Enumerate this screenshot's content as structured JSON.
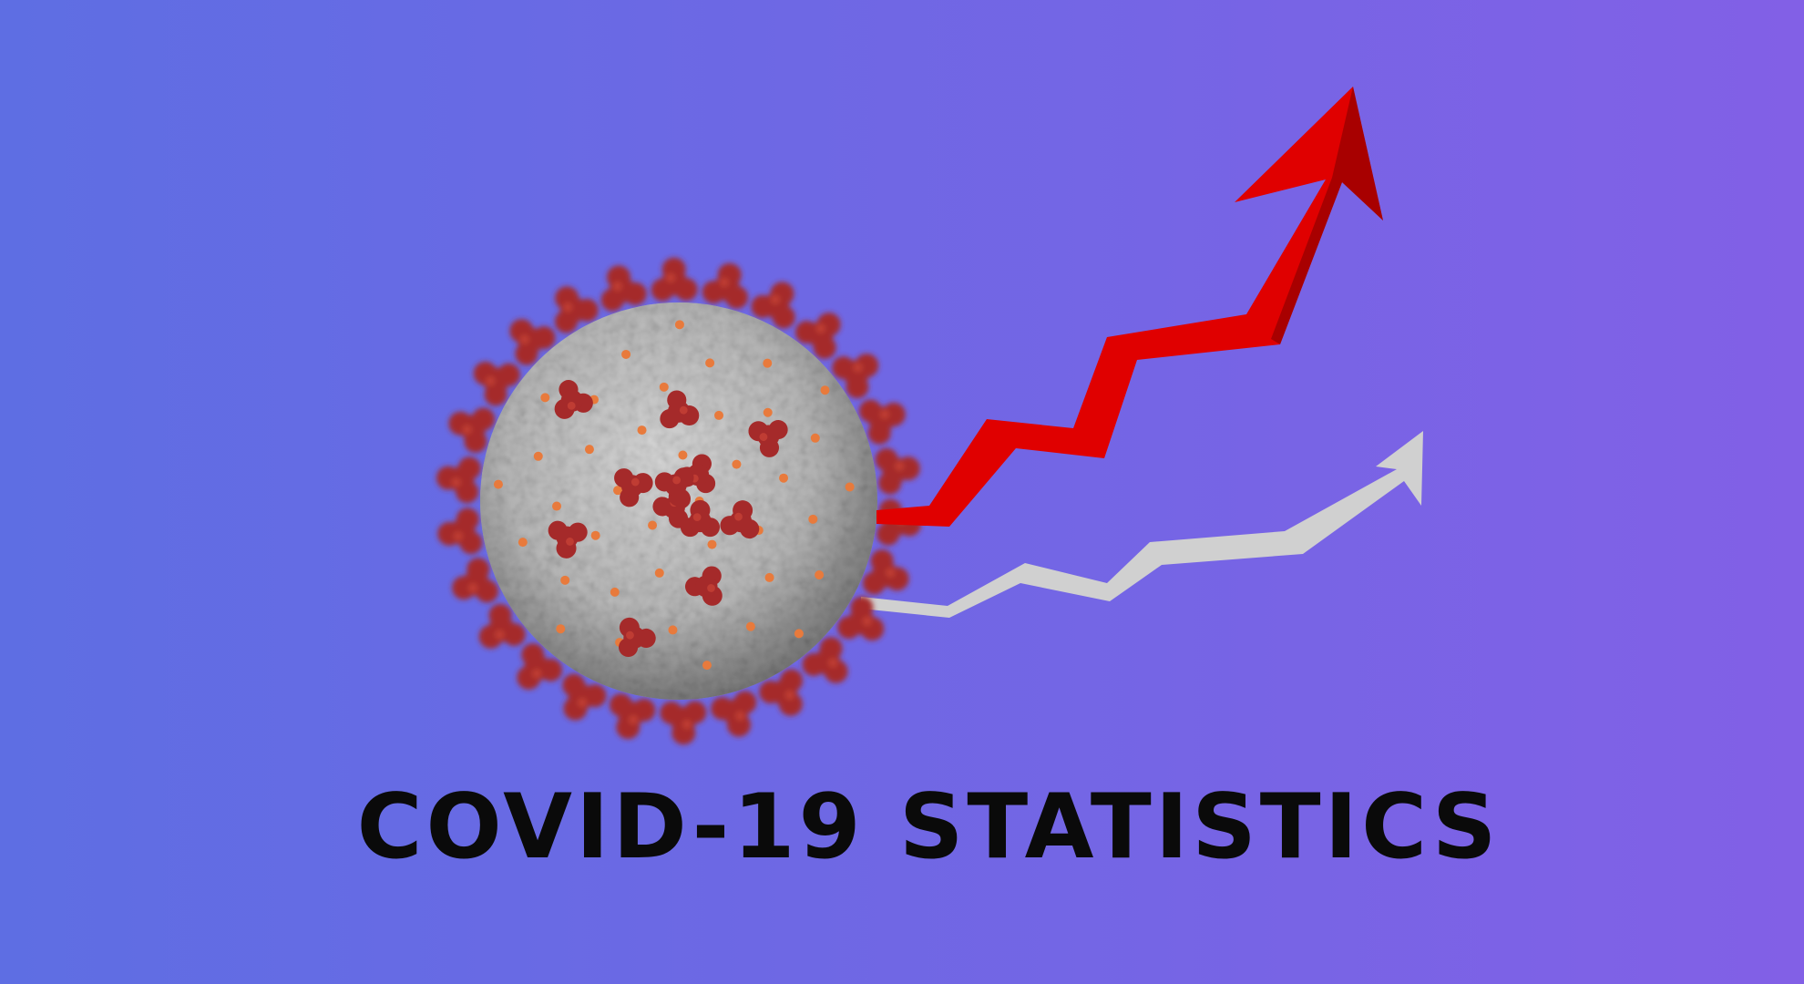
{
  "title": "COVID-19 STATISTICS",
  "colors": {
    "background_left": "#5E6EE3",
    "background_right": "#8260E6",
    "title_text": "#0A0A0A",
    "virus_body": "#B8B8B8",
    "virus_spike": "#A52A2A",
    "virus_dot": "#E87A3C",
    "trend_arrow_primary": "#E00000",
    "trend_arrow_secondary": "#D0D0D0"
  },
  "icons": {
    "virus": "coronavirus-particle-icon",
    "arrow_primary": "trend-up-arrow-red-icon",
    "arrow_secondary": "trend-up-arrow-gray-icon"
  }
}
